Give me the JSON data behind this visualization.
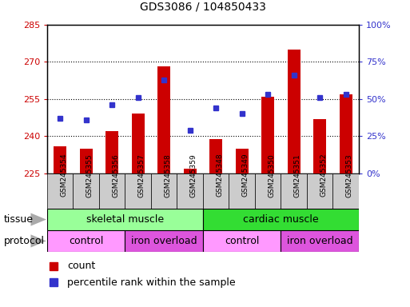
{
  "title": "GDS3086 / 104850433",
  "samples": [
    "GSM245354",
    "GSM245355",
    "GSM245356",
    "GSM245357",
    "GSM245358",
    "GSM245359",
    "GSM245348",
    "GSM245349",
    "GSM245350",
    "GSM245351",
    "GSM245352",
    "GSM245353"
  ],
  "counts": [
    236,
    235,
    242,
    249,
    268,
    227,
    239,
    235,
    256,
    275,
    247,
    257
  ],
  "percentiles": [
    37,
    36,
    46,
    51,
    63,
    29,
    44,
    40,
    53,
    66,
    51,
    53
  ],
  "ylim_left": [
    225,
    285
  ],
  "ylim_right": [
    0,
    100
  ],
  "yticks_left": [
    225,
    240,
    255,
    270,
    285
  ],
  "yticks_right": [
    0,
    25,
    50,
    75,
    100
  ],
  "bar_color": "#cc0000",
  "dot_color": "#3333cc",
  "bar_bottom": 225,
  "tissue_groups": [
    {
      "label": "skeletal muscle",
      "start": 0,
      "end": 6,
      "color": "#99ff99"
    },
    {
      "label": "cardiac muscle",
      "start": 6,
      "end": 12,
      "color": "#33dd33"
    }
  ],
  "protocol_groups": [
    {
      "label": "control",
      "start": 0,
      "end": 3,
      "color": "#ff99ff"
    },
    {
      "label": "iron overload",
      "start": 3,
      "end": 6,
      "color": "#dd55dd"
    },
    {
      "label": "control",
      "start": 6,
      "end": 9,
      "color": "#ff99ff"
    },
    {
      "label": "iron overload",
      "start": 9,
      "end": 12,
      "color": "#dd55dd"
    }
  ],
  "tissue_label": "tissue",
  "protocol_label": "protocol",
  "legend_count_label": "count",
  "legend_pct_label": "percentile rank within the sample",
  "label_color_left": "#cc0000",
  "label_color_right": "#3333cc",
  "right_ytick_labels": [
    "0%",
    "25%",
    "50%",
    "75%",
    "100%"
  ],
  "plot_bg": "#ffffff",
  "fig_bg": "#ffffff",
  "xtick_bg": "#cccccc"
}
